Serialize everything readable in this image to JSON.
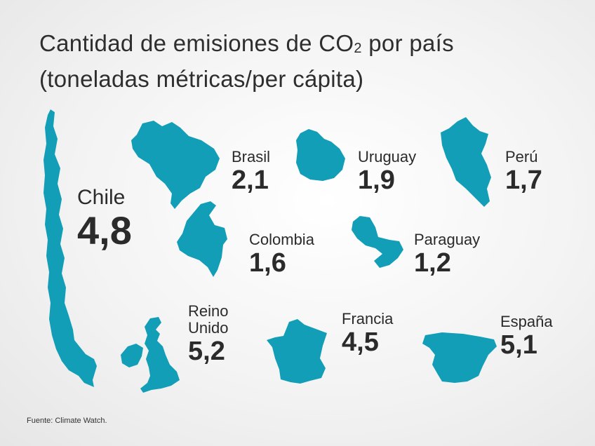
{
  "title_line1": "Cantidad de emisiones de CO",
  "title_sub": "2",
  "title_line1_end": " por país",
  "title_line2": "(toneladas métricas/per cápita)",
  "source": "Fuente: Climate Watch.",
  "accent_color": "#129eb7",
  "chart_data": {
    "type": "table",
    "title": "Cantidad de emisiones de CO2 por país (toneladas métricas/per cápita)",
    "categories": [
      "Chile",
      "Brasil",
      "Uruguay",
      "Perú",
      "Colombia",
      "Paraguay",
      "Reino Unido",
      "Francia",
      "España"
    ],
    "values": [
      4.8,
      2.1,
      1.9,
      1.7,
      1.6,
      1.2,
      5.2,
      4.5,
      5.1
    ],
    "items": [
      {
        "name": "Chile",
        "name_line2": "",
        "value": "4,8"
      },
      {
        "name": "Brasil",
        "name_line2": "",
        "value": "2,1"
      },
      {
        "name": "Uruguay",
        "name_line2": "",
        "value": "1,9"
      },
      {
        "name": "Perú",
        "name_line2": "",
        "value": "1,7"
      },
      {
        "name": "Colombia",
        "name_line2": "",
        "value": "1,6"
      },
      {
        "name": "Paraguay",
        "name_line2": "",
        "value": "1,2"
      },
      {
        "name": "Reino",
        "name_line2": "Unido",
        "value": "5,2"
      },
      {
        "name": "Francia",
        "name_line2": "",
        "value": "4,5"
      },
      {
        "name": "España",
        "name_line2": "",
        "value": "5,1"
      }
    ]
  }
}
